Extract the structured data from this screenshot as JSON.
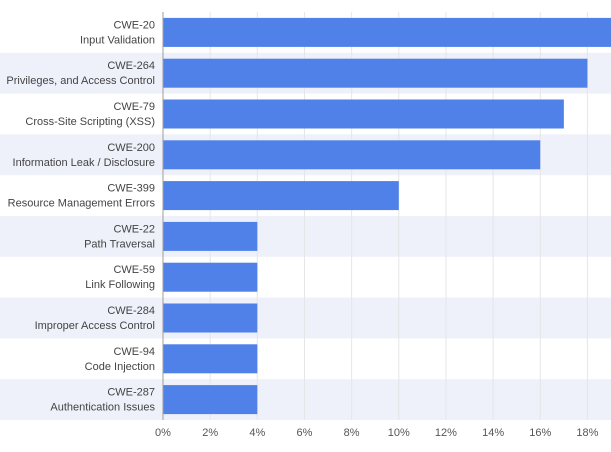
{
  "chart_data": {
    "type": "bar",
    "orientation": "horizontal",
    "categories": [
      {
        "id": "CWE-20",
        "name": "Input Validation"
      },
      {
        "id": "CWE-264",
        "name": "Privileges, and Access Control"
      },
      {
        "id": "CWE-79",
        "name": "Cross-Site Scripting (XSS)"
      },
      {
        "id": "CWE-200",
        "name": "Information Leak / Disclosure"
      },
      {
        "id": "CWE-399",
        "name": "Resource Management Errors"
      },
      {
        "id": "CWE-22",
        "name": "Path Traversal"
      },
      {
        "id": "CWE-59",
        "name": "Link Following"
      },
      {
        "id": "CWE-284",
        "name": "Improper Access Control"
      },
      {
        "id": "CWE-94",
        "name": "Code Injection"
      },
      {
        "id": "CWE-287",
        "name": "Authentication Issues"
      }
    ],
    "values": [
      19,
      18,
      17,
      16,
      10,
      4,
      4,
      4,
      4,
      4
    ],
    "xlim": [
      0,
      19
    ],
    "xticks": [
      0,
      2,
      4,
      6,
      8,
      10,
      12,
      14,
      16,
      18
    ],
    "tick_suffix": "%",
    "grid": true,
    "colors": {
      "bar": "#4f81e8",
      "band": "#eef0fa",
      "grid": "#e6e6e6",
      "axis": "#9e9e9e"
    }
  }
}
